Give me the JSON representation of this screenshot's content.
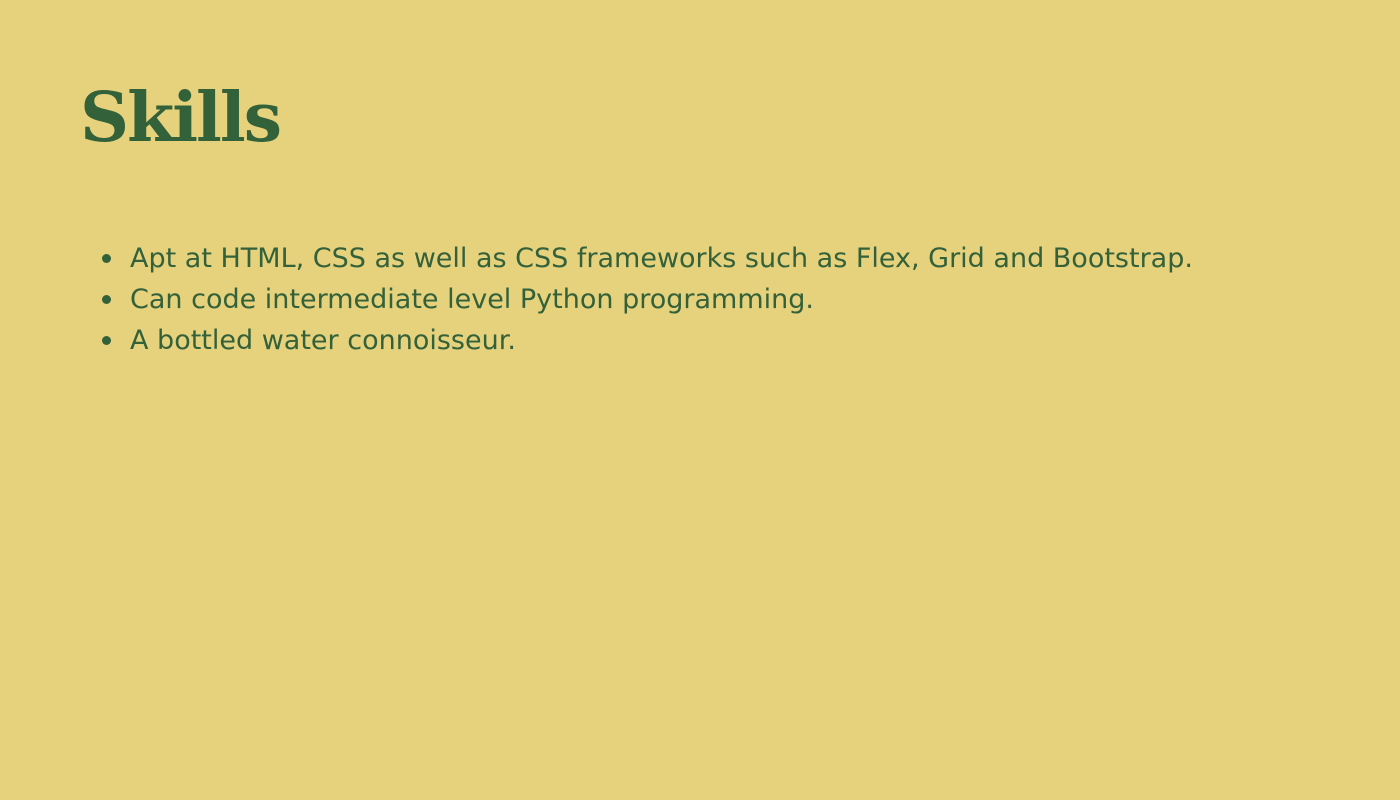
{
  "page": {
    "title": "Skills",
    "skills": [
      "Apt at HTML, CSS as well as CSS frameworks such as Flex, Grid and Bootstrap.",
      "Can code intermediate level Python programming.",
      "A bottled water connoisseur."
    ]
  },
  "colors": {
    "background": "#e6d17d",
    "text": "#33613a"
  }
}
